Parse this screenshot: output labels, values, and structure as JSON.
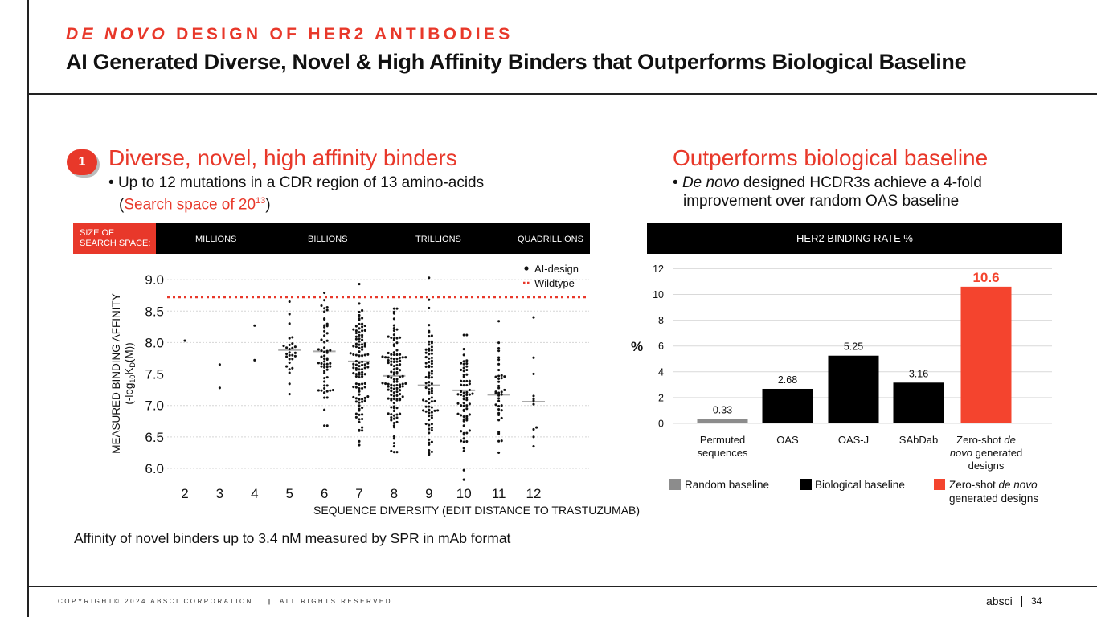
{
  "kicker": {
    "italic": "DE NOVO",
    "rest": " DESIGN OF HER2 ANTIBODIES"
  },
  "headline": "AI Generated Diverse, Novel & High Affinity Binders that Outperforms Biological Baseline",
  "left": {
    "badge": "1",
    "title": "Diverse, novel, high affinity binders",
    "bullet_main": "Up to 12 mutations in a CDR region of 13 amino-acids",
    "bullet_open": "(",
    "bullet_red": "Search space of 20",
    "bullet_sup": "13",
    "bullet_close": ")",
    "strip": {
      "label_line1": "SIZE OF",
      "label_line2": "SEARCH SPACE:",
      "items": [
        "MILLIONS",
        "BILLIONS",
        "TRILLIONS",
        "QUADRILLIONS"
      ]
    },
    "caption": "Affinity of novel binders up to 3.4 nM measured by SPR in mAb format"
  },
  "right": {
    "title": "Outperforms biological baseline",
    "bullet_italic": "De novo",
    "bullet_rest": " designed HCDR3s achieve a 4-fold",
    "bullet_line2": "improvement over random OAS baseline",
    "strip_label": "HER2 BINDING RATE %"
  },
  "chart_data": [
    {
      "type": "scatter",
      "title": "",
      "xlabel": "SEQUENCE DIVERSITY (EDIT DISTANCE TO TRASTUZUMAB)",
      "ylabel_line1": "MEASURED BINDING AFFINITY",
      "ylabel_line2_pre": "(-log",
      "ylabel_sub1": "10",
      "ylabel_mid": "K",
      "ylabel_sub2": "D",
      "ylabel_post": "(M))",
      "ylim": [
        5.9,
        9.1
      ],
      "yticks": [
        "6.0",
        "6.5",
        "7.0",
        "7.5",
        "8.0",
        "8.5",
        "9.0"
      ],
      "xticks": [
        "2",
        "3",
        "4",
        "5",
        "6",
        "7",
        "8",
        "9",
        "10",
        "11",
        "12"
      ],
      "legend": {
        "ai": "AI-design",
        "wt": "Wildtype"
      },
      "wildtype": 8.72,
      "colors": {
        "points": "#111111",
        "wildtype": "#e8382a",
        "median": "#aaaaaa"
      },
      "series": [
        {
          "x": 2,
          "n": 1,
          "median": null,
          "values": [
            8.03
          ]
        },
        {
          "x": 3,
          "n": 2,
          "median": null,
          "values": [
            7.65,
            7.28
          ]
        },
        {
          "x": 4,
          "n": 2,
          "median": null,
          "values": [
            8.27,
            7.72
          ]
        },
        {
          "x": 5,
          "n": 28,
          "median": 7.88,
          "range": [
            7.18,
            8.65
          ],
          "extra": [
            8.65,
            7.18
          ]
        },
        {
          "x": 6,
          "n": 62,
          "median": 7.86,
          "range": [
            6.68,
            8.79
          ],
          "extra": [
            8.79,
            6.68,
            6.93
          ]
        },
        {
          "x": 7,
          "n": 110,
          "median": 7.7,
          "range": [
            6.37,
            8.93
          ],
          "extra": [
            8.93,
            6.37,
            6.43,
            6.65
          ]
        },
        {
          "x": 8,
          "n": 120,
          "median": 7.47,
          "range": [
            6.26,
            8.54
          ],
          "extra": [
            8.54,
            6.26,
            6.35
          ]
        },
        {
          "x": 9,
          "n": 85,
          "median": 7.32,
          "range": [
            6.22,
            9.03
          ],
          "extra": [
            9.03,
            8.68,
            6.22
          ]
        },
        {
          "x": 10,
          "n": 70,
          "median": 7.24,
          "range": [
            5.82,
            8.12
          ],
          "extra": [
            5.82,
            6.32
          ]
        },
        {
          "x": 11,
          "n": 40,
          "median": 7.17,
          "range": [
            6.25,
            8.34
          ],
          "extra": [
            8.34,
            6.25
          ]
        },
        {
          "x": 12,
          "n": 11,
          "median": 7.06,
          "range": [
            6.35,
            8.4
          ],
          "extra": [
            8.4,
            7.76,
            6.35,
            6.5,
            6.62,
            6.65
          ]
        }
      ]
    },
    {
      "type": "bar",
      "title": "HER2 BINDING RATE %",
      "ylabel": "%",
      "ylim": [
        0,
        12
      ],
      "yticks": [
        "0",
        "2",
        "4",
        "6",
        "8",
        "10",
        "12"
      ],
      "bars": [
        {
          "label_lines": [
            "Permuted",
            "sequences"
          ],
          "value": 0.33,
          "value_label": "0.33",
          "group": "random"
        },
        {
          "label_lines": [
            "OAS"
          ],
          "value": 2.68,
          "value_label": "2.68",
          "group": "bio"
        },
        {
          "label_lines": [
            "OAS-J"
          ],
          "value": 5.25,
          "value_label": "5.25",
          "group": "bio"
        },
        {
          "label_lines": [
            "SAbDab"
          ],
          "value": 3.16,
          "value_label": "3.16",
          "group": "bio"
        },
        {
          "label_lines": [
            "Zero-shot ",
            "de",
            "novo",
            " generated",
            "designs"
          ],
          "value": 10.6,
          "value_label": "10.6",
          "group": "zero"
        }
      ],
      "legend": {
        "random": "Random baseline",
        "bio": "Biological baseline",
        "zero_pre": "Zero-shot ",
        "zero_it": "de novo",
        "zero_line2": "generated designs"
      },
      "colors": {
        "random": "#8c8c8c",
        "bio": "#000000",
        "zero": "#f4442e",
        "grid": "#d9d9d9"
      }
    }
  ],
  "footer": {
    "copyright": "COPYRIGHT© 2024 ABSCI CORPORATION.",
    "sep": "|",
    "rights": "ALL RIGHTS RESERVED."
  },
  "brand": "absci",
  "page_number": "34"
}
